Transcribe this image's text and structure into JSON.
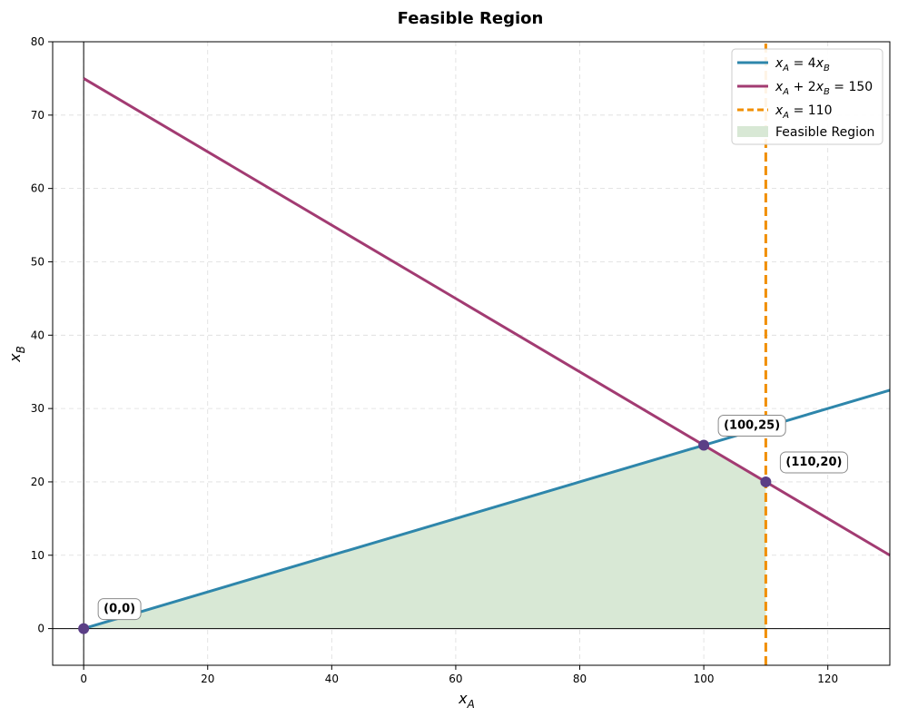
{
  "chart_data": {
    "type": "line",
    "title": "Feasible Region",
    "xlabel_main": "x",
    "xlabel_sub": "A",
    "ylabel_main": "x",
    "ylabel_sub": "B",
    "xlim": [
      -5,
      130
    ],
    "ylim": [
      -5,
      80
    ],
    "xticks": [
      0,
      20,
      40,
      60,
      80,
      100,
      120
    ],
    "yticks": [
      0,
      10,
      20,
      30,
      40,
      50,
      60,
      70,
      80
    ],
    "grid": true,
    "legend_position": "top-right",
    "series": [
      {
        "name": "x_A = 4x_B",
        "legend_parts": [
          [
            "x",
            "i"
          ],
          [
            "A",
            "sub"
          ],
          [
            " = 4",
            "n"
          ],
          [
            "x",
            "i"
          ],
          [
            "B",
            "sub"
          ]
        ],
        "color": "#2e86ab",
        "style": "solid",
        "x": [
          0,
          130
        ],
        "y": [
          0,
          32.5
        ]
      },
      {
        "name": "x_A + 2x_B = 150",
        "legend_parts": [
          [
            "x",
            "i"
          ],
          [
            "A",
            "sub"
          ],
          [
            " + 2",
            "n"
          ],
          [
            "x",
            "i"
          ],
          [
            "B",
            "sub"
          ],
          [
            " = 150",
            "n"
          ]
        ],
        "color": "#a23b72",
        "style": "solid",
        "x": [
          0,
          130
        ],
        "y": [
          75,
          10
        ]
      },
      {
        "name": "x_A = 110",
        "legend_parts": [
          [
            "x",
            "i"
          ],
          [
            "A",
            "sub"
          ],
          [
            " = 110",
            "n"
          ]
        ],
        "color": "#f18f01",
        "style": "dashed",
        "x": [
          110,
          110
        ],
        "y": [
          -5,
          80
        ]
      }
    ],
    "feasible_region": {
      "name": "Feasible Region",
      "color": "#d8e8d5",
      "vertices": [
        [
          0,
          0
        ],
        [
          100,
          25
        ],
        [
          110,
          20
        ],
        [
          110,
          0
        ]
      ]
    },
    "points": [
      {
        "label": "(0,0)",
        "x": 0,
        "y": 0
      },
      {
        "label": "(100,25)",
        "x": 100,
        "y": 25
      },
      {
        "label": "(110,20)",
        "x": 110,
        "y": 20
      }
    ],
    "point_color": "#5b3f86"
  }
}
